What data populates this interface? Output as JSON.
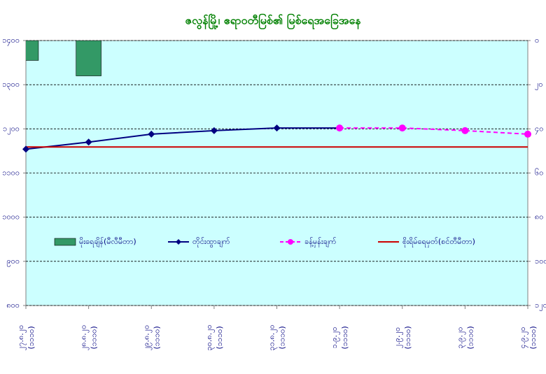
{
  "chart_data": {
    "type": "combo",
    "title": "ဇလွန်မြို့၊ ဧရာဝတီမြစ်၏ မြစ်ရေအခြေအနေ",
    "categories": [
      "၂၇.၈.၂၀",
      "၂၈.၈.၂၀",
      "၂၉.၈.၂၀",
      "၃၀.၈.၂၀",
      "၃၁.၈.၂၀",
      "၁.၉.၂၀",
      "၂.၉.၂၀",
      "၃.၉.၂၀",
      "၄.၉.၂၀"
    ],
    "category_sublabels": [
      "(၁၁၁၀)",
      "(၁၁၁၀)",
      "(၁၁၁၀)",
      "(၁၁၁၀)",
      "(၁၁၁၀)",
      "(၁၁၁၀)",
      "(၁၁၁၀)",
      "(၁၁၁၀)",
      "(၁၁၁၀)"
    ],
    "series": [
      {
        "name": "မိုးရေချိန်(မီလီမီတာ)",
        "type": "bar",
        "axis": "y2",
        "color": "#339966",
        "values": [
          9,
          16,
          null,
          null,
          null,
          null,
          null,
          null,
          null
        ]
      },
      {
        "name": "တိုင်းထွာချက်",
        "type": "line",
        "color": "#000080",
        "marker": "diamond",
        "dashed": false,
        "values": [
          1154,
          1170,
          1188,
          1196,
          1202,
          1202,
          null,
          null,
          null
        ]
      },
      {
        "name": "ခန့်မှန်းချက်",
        "type": "line",
        "color": "#ff00ff",
        "marker": "circle",
        "dashed": true,
        "values": [
          null,
          null,
          null,
          null,
          null,
          1202,
          1202,
          1196,
          1188
        ]
      },
      {
        "name": "စိုးရိမ်ရေမှတ်(စင်တီမီတာ)",
        "type": "line",
        "color": "#cc0000",
        "marker": "none",
        "dashed": false,
        "values": [
          1159,
          1159,
          1159,
          1159,
          1159,
          1159,
          1159,
          1159,
          1159
        ]
      }
    ],
    "ylim": [
      800,
      1400
    ],
    "yticks": [
      {
        "value": 800,
        "label": "၈၀၀"
      },
      {
        "value": 900,
        "label": "၉၀၀"
      },
      {
        "value": 1000,
        "label": "၁၀၀၀"
      },
      {
        "value": 1100,
        "label": "၁၁၀၀"
      },
      {
        "value": 1200,
        "label": "၁၂၀၀"
      },
      {
        "value": 1300,
        "label": "၁၃၀၀"
      },
      {
        "value": 1400,
        "label": "၁၄၀၀"
      }
    ],
    "y2lim": [
      0,
      120
    ],
    "y2_inverted": true,
    "y2ticks": [
      {
        "value": 0,
        "label": "၀"
      },
      {
        "value": 20,
        "label": "၂၀"
      },
      {
        "value": 40,
        "label": "၄၀"
      },
      {
        "value": 60,
        "label": "၆၀"
      },
      {
        "value": 80,
        "label": "၈၀"
      },
      {
        "value": 100,
        "label": "၁၀၀"
      },
      {
        "value": 120,
        "label": "၁၂၀"
      }
    ],
    "grid": true,
    "plot_color": "#ccffff",
    "title_color": "#008000",
    "tick_color": "#000080"
  }
}
